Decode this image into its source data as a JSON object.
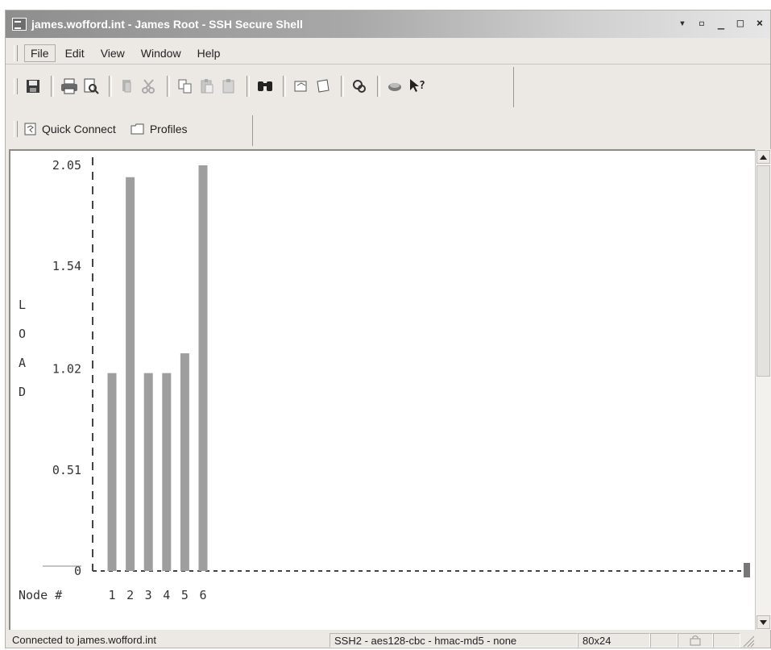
{
  "window": {
    "title": "james.wofford.int - James Root - SSH Secure Shell",
    "controls": [
      "minimize-icon",
      "restore-icon",
      "minimize-icon",
      "maximize-icon",
      "close-icon"
    ]
  },
  "menu": {
    "items": [
      "File",
      "Edit",
      "View",
      "Window",
      "Help"
    ]
  },
  "toolbar": {
    "icons": [
      "save-icon",
      "print-icon",
      "print-preview-icon",
      "disconnect-icon",
      "scissors-icon",
      "copy-icon",
      "paste-icon",
      "paste-alt-icon",
      "find-icon",
      "file-transfer-icon",
      "new-window-icon",
      "settings-icon",
      "lock-icon",
      "help-pointer-icon"
    ]
  },
  "quickbar": {
    "quick_connect": "Quick Connect",
    "profiles": "Profiles"
  },
  "terminal": {
    "y_label_letters": [
      "L",
      "O",
      "A",
      "D"
    ],
    "node_label": "Node #",
    "chart_data": {
      "type": "bar",
      "categories": [
        "1",
        "2",
        "3",
        "4",
        "5",
        "6"
      ],
      "values": [
        1.0,
        1.99,
        1.0,
        1.0,
        1.1,
        2.05
      ],
      "y_ticks": [
        "2.05",
        "1.54",
        "1.02",
        "0.51",
        "0"
      ],
      "ylim": [
        0,
        2.05
      ],
      "ylabel": "LOAD",
      "xlabel": "Node #",
      "bar_color": "#9e9e9e",
      "grid": false
    }
  },
  "status": {
    "connection": "Connected to james.wofford.int",
    "cipher": "SSH2 - aes128-cbc - hmac-md5 - none",
    "size": "80x24"
  }
}
